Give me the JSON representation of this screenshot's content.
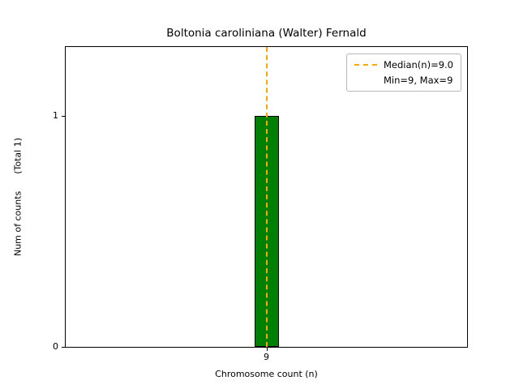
{
  "chart_data": {
    "type": "bar",
    "title": "Boltonia caroliniana (Walter) Fernald",
    "xlabel": "Chromosome count (n)",
    "ylabel": "Num of counts      (Total 1)",
    "categories": [
      "9"
    ],
    "values": [
      1
    ],
    "ylim": [
      0,
      1.3
    ],
    "yticks": [
      "0",
      "1"
    ],
    "ytick_values": [
      0,
      1
    ],
    "bar_color": "#008000",
    "bar_edge_color": "#000000",
    "median_line": {
      "value": 9,
      "color": "#FFA500",
      "style": "dashed"
    },
    "legend": {
      "position": "upper right",
      "entries": [
        {
          "label": "Median(n)=9.0",
          "handle": "dashed-line",
          "color": "#FFA500"
        },
        {
          "label": "Min=9, Max=9",
          "handle": "none"
        }
      ]
    },
    "grid": false
  }
}
